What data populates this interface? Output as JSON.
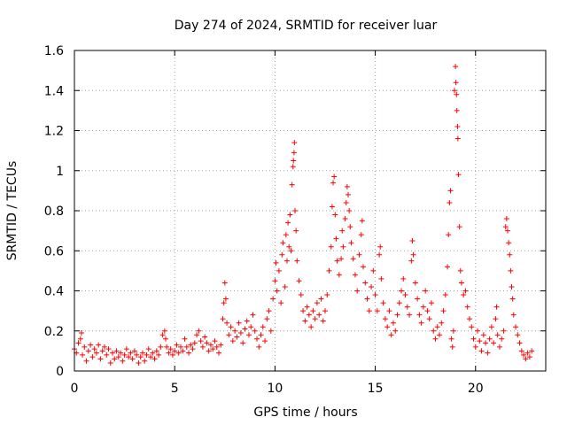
{
  "chart_data": {
    "type": "scatter",
    "marker": "+",
    "title": "Day 274 of 2024, SRMTID for receiver luar",
    "xlabel": "GPS time / hours",
    "ylabel": "SRMTID / TECUs",
    "xlim": [
      0,
      23.5
    ],
    "ylim": [
      0,
      1.6
    ],
    "grid": true,
    "xticks": [
      0,
      5,
      10,
      15,
      20
    ],
    "xtick_labels": [
      "0",
      "5",
      "10",
      "15",
      "20"
    ],
    "yticks": [
      0,
      0.2,
      0.4,
      0.6,
      0.8,
      1.0,
      1.2,
      1.4,
      1.6
    ],
    "ytick_labels": [
      "0",
      "0.2",
      "0.4",
      "0.6",
      "0.8",
      "1",
      "1.2",
      "1.4",
      "1.6"
    ],
    "series": [
      {
        "name": "SRMTID",
        "color": "#ff0000",
        "points": [
          [
            0.0,
            0.11
          ],
          [
            0.1,
            0.09
          ],
          [
            0.2,
            0.14
          ],
          [
            0.3,
            0.16
          ],
          [
            0.35,
            0.19
          ],
          [
            0.4,
            0.08
          ],
          [
            0.5,
            0.12
          ],
          [
            0.6,
            0.05
          ],
          [
            0.7,
            0.1
          ],
          [
            0.8,
            0.13
          ],
          [
            0.9,
            0.07
          ],
          [
            1.0,
            0.11
          ],
          [
            1.1,
            0.09
          ],
          [
            1.2,
            0.13
          ],
          [
            1.3,
            0.06
          ],
          [
            1.4,
            0.1
          ],
          [
            1.5,
            0.12
          ],
          [
            1.6,
            0.08
          ],
          [
            1.7,
            0.11
          ],
          [
            1.8,
            0.04
          ],
          [
            1.9,
            0.09
          ],
          [
            2.0,
            0.06
          ],
          [
            2.1,
            0.1
          ],
          [
            2.2,
            0.07
          ],
          [
            2.3,
            0.09
          ],
          [
            2.4,
            0.05
          ],
          [
            2.5,
            0.08
          ],
          [
            2.6,
            0.11
          ],
          [
            2.7,
            0.07
          ],
          [
            2.8,
            0.09
          ],
          [
            2.9,
            0.06
          ],
          [
            3.0,
            0.1
          ],
          [
            3.1,
            0.08
          ],
          [
            3.2,
            0.04
          ],
          [
            3.3,
            0.07
          ],
          [
            3.4,
            0.09
          ],
          [
            3.5,
            0.05
          ],
          [
            3.6,
            0.08
          ],
          [
            3.7,
            0.11
          ],
          [
            3.8,
            0.07
          ],
          [
            3.9,
            0.09
          ],
          [
            4.0,
            0.06
          ],
          [
            4.1,
            0.1
          ],
          [
            4.2,
            0.08
          ],
          [
            4.3,
            0.12
          ],
          [
            4.4,
            0.18
          ],
          [
            4.5,
            0.2
          ],
          [
            4.55,
            0.16
          ],
          [
            4.6,
            0.12
          ],
          [
            4.7,
            0.09
          ],
          [
            4.8,
            0.11
          ],
          [
            4.9,
            0.08
          ],
          [
            5.0,
            0.1
          ],
          [
            5.1,
            0.13
          ],
          [
            5.2,
            0.09
          ],
          [
            5.3,
            0.12
          ],
          [
            5.4,
            0.1
          ],
          [
            5.5,
            0.16
          ],
          [
            5.6,
            0.12
          ],
          [
            5.7,
            0.09
          ],
          [
            5.8,
            0.13
          ],
          [
            5.9,
            0.11
          ],
          [
            6.0,
            0.14
          ],
          [
            6.1,
            0.18
          ],
          [
            6.2,
            0.2
          ],
          [
            6.3,
            0.15
          ],
          [
            6.4,
            0.12
          ],
          [
            6.5,
            0.17
          ],
          [
            6.6,
            0.14
          ],
          [
            6.7,
            0.1
          ],
          [
            6.8,
            0.13
          ],
          [
            6.9,
            0.11
          ],
          [
            7.0,
            0.15
          ],
          [
            7.1,
            0.12
          ],
          [
            7.2,
            0.09
          ],
          [
            7.3,
            0.13
          ],
          [
            7.4,
            0.26
          ],
          [
            7.45,
            0.34
          ],
          [
            7.5,
            0.44
          ],
          [
            7.55,
            0.36
          ],
          [
            7.6,
            0.24
          ],
          [
            7.7,
            0.18
          ],
          [
            7.8,
            0.22
          ],
          [
            7.9,
            0.15
          ],
          [
            8.0,
            0.2
          ],
          [
            8.1,
            0.17
          ],
          [
            8.2,
            0.24
          ],
          [
            8.3,
            0.19
          ],
          [
            8.4,
            0.14
          ],
          [
            8.5,
            0.21
          ],
          [
            8.6,
            0.25
          ],
          [
            8.7,
            0.18
          ],
          [
            8.8,
            0.22
          ],
          [
            8.9,
            0.28
          ],
          [
            9.0,
            0.2
          ],
          [
            9.1,
            0.16
          ],
          [
            9.2,
            0.12
          ],
          [
            9.3,
            0.18
          ],
          [
            9.4,
            0.22
          ],
          [
            9.5,
            0.15
          ],
          [
            9.6,
            0.26
          ],
          [
            9.7,
            0.3
          ],
          [
            9.8,
            0.2
          ],
          [
            9.9,
            0.36
          ],
          [
            10.0,
            0.45
          ],
          [
            10.05,
            0.54
          ],
          [
            10.1,
            0.4
          ],
          [
            10.2,
            0.5
          ],
          [
            10.3,
            0.34
          ],
          [
            10.35,
            0.58
          ],
          [
            10.4,
            0.64
          ],
          [
            10.5,
            0.42
          ],
          [
            10.55,
            0.68
          ],
          [
            10.6,
            0.55
          ],
          [
            10.65,
            0.74
          ],
          [
            10.7,
            0.62
          ],
          [
            10.75,
            0.78
          ],
          [
            10.8,
            0.6
          ],
          [
            10.85,
            0.93
          ],
          [
            10.9,
            1.02
          ],
          [
            10.92,
            1.05
          ],
          [
            10.95,
            1.09
          ],
          [
            10.97,
            1.14
          ],
          [
            11.0,
            0.8
          ],
          [
            11.05,
            0.7
          ],
          [
            11.1,
            0.55
          ],
          [
            11.2,
            0.45
          ],
          [
            11.3,
            0.38
          ],
          [
            11.4,
            0.3
          ],
          [
            11.5,
            0.25
          ],
          [
            11.6,
            0.32
          ],
          [
            11.7,
            0.28
          ],
          [
            11.8,
            0.22
          ],
          [
            11.9,
            0.3
          ],
          [
            12.0,
            0.26
          ],
          [
            12.1,
            0.34
          ],
          [
            12.2,
            0.28
          ],
          [
            12.3,
            0.36
          ],
          [
            12.4,
            0.25
          ],
          [
            12.5,
            0.3
          ],
          [
            12.6,
            0.38
          ],
          [
            12.7,
            0.5
          ],
          [
            12.8,
            0.62
          ],
          [
            12.85,
            0.82
          ],
          [
            12.9,
            0.94
          ],
          [
            12.95,
            0.97
          ],
          [
            13.0,
            0.78
          ],
          [
            13.05,
            0.66
          ],
          [
            13.1,
            0.55
          ],
          [
            13.2,
            0.48
          ],
          [
            13.3,
            0.56
          ],
          [
            13.35,
            0.7
          ],
          [
            13.4,
            0.62
          ],
          [
            13.5,
            0.76
          ],
          [
            13.55,
            0.84
          ],
          [
            13.6,
            0.92
          ],
          [
            13.65,
            0.88
          ],
          [
            13.7,
            0.8
          ],
          [
            13.75,
            0.72
          ],
          [
            13.8,
            0.64
          ],
          [
            13.9,
            0.56
          ],
          [
            14.0,
            0.48
          ],
          [
            14.1,
            0.4
          ],
          [
            14.2,
            0.58
          ],
          [
            14.3,
            0.68
          ],
          [
            14.35,
            0.75
          ],
          [
            14.4,
            0.52
          ],
          [
            14.5,
            0.44
          ],
          [
            14.6,
            0.36
          ],
          [
            14.7,
            0.3
          ],
          [
            14.8,
            0.42
          ],
          [
            14.9,
            0.5
          ],
          [
            15.0,
            0.38
          ],
          [
            15.1,
            0.3
          ],
          [
            15.2,
            0.58
          ],
          [
            15.25,
            0.62
          ],
          [
            15.3,
            0.46
          ],
          [
            15.4,
            0.34
          ],
          [
            15.5,
            0.26
          ],
          [
            15.6,
            0.22
          ],
          [
            15.7,
            0.3
          ],
          [
            15.8,
            0.18
          ],
          [
            15.9,
            0.24
          ],
          [
            16.0,
            0.2
          ],
          [
            16.1,
            0.28
          ],
          [
            16.2,
            0.34
          ],
          [
            16.3,
            0.4
          ],
          [
            16.4,
            0.46
          ],
          [
            16.5,
            0.38
          ],
          [
            16.6,
            0.32
          ],
          [
            16.7,
            0.28
          ],
          [
            16.8,
            0.55
          ],
          [
            16.85,
            0.65
          ],
          [
            16.9,
            0.58
          ],
          [
            17.0,
            0.44
          ],
          [
            17.1,
            0.36
          ],
          [
            17.2,
            0.28
          ],
          [
            17.3,
            0.24
          ],
          [
            17.4,
            0.32
          ],
          [
            17.5,
            0.4
          ],
          [
            17.6,
            0.3
          ],
          [
            17.7,
            0.26
          ],
          [
            17.8,
            0.34
          ],
          [
            17.9,
            0.2
          ],
          [
            18.0,
            0.16
          ],
          [
            18.1,
            0.22
          ],
          [
            18.2,
            0.18
          ],
          [
            18.3,
            0.24
          ],
          [
            18.4,
            0.3
          ],
          [
            18.5,
            0.38
          ],
          [
            18.6,
            0.52
          ],
          [
            18.65,
            0.68
          ],
          [
            18.7,
            0.84
          ],
          [
            18.75,
            0.9
          ],
          [
            18.8,
            0.16
          ],
          [
            18.85,
            0.12
          ],
          [
            18.9,
            0.2
          ],
          [
            18.95,
            1.4
          ],
          [
            19.0,
            1.52
          ],
          [
            19.02,
            1.44
          ],
          [
            19.05,
            1.38
          ],
          [
            19.07,
            1.3
          ],
          [
            19.1,
            1.22
          ],
          [
            19.12,
            1.16
          ],
          [
            19.15,
            0.98
          ],
          [
            19.2,
            0.72
          ],
          [
            19.25,
            0.5
          ],
          [
            19.3,
            0.44
          ],
          [
            19.4,
            0.38
          ],
          [
            19.5,
            0.4
          ],
          [
            19.6,
            0.32
          ],
          [
            19.7,
            0.26
          ],
          [
            19.8,
            0.22
          ],
          [
            19.9,
            0.16
          ],
          [
            20.0,
            0.12
          ],
          [
            20.1,
            0.2
          ],
          [
            20.2,
            0.15
          ],
          [
            20.3,
            0.1
          ],
          [
            20.4,
            0.18
          ],
          [
            20.5,
            0.14
          ],
          [
            20.6,
            0.09
          ],
          [
            20.7,
            0.16
          ],
          [
            20.8,
            0.22
          ],
          [
            20.9,
            0.14
          ],
          [
            21.0,
            0.26
          ],
          [
            21.05,
            0.32
          ],
          [
            21.1,
            0.18
          ],
          [
            21.2,
            0.12
          ],
          [
            21.3,
            0.16
          ],
          [
            21.4,
            0.2
          ],
          [
            21.5,
            0.72
          ],
          [
            21.55,
            0.76
          ],
          [
            21.6,
            0.7
          ],
          [
            21.65,
            0.64
          ],
          [
            21.7,
            0.58
          ],
          [
            21.75,
            0.5
          ],
          [
            21.8,
            0.42
          ],
          [
            21.85,
            0.36
          ],
          [
            21.9,
            0.28
          ],
          [
            22.0,
            0.22
          ],
          [
            22.1,
            0.18
          ],
          [
            22.2,
            0.14
          ],
          [
            22.3,
            0.1
          ],
          [
            22.4,
            0.08
          ],
          [
            22.5,
            0.06
          ],
          [
            22.6,
            0.09
          ],
          [
            22.7,
            0.07
          ],
          [
            22.8,
            0.1
          ]
        ]
      }
    ]
  }
}
